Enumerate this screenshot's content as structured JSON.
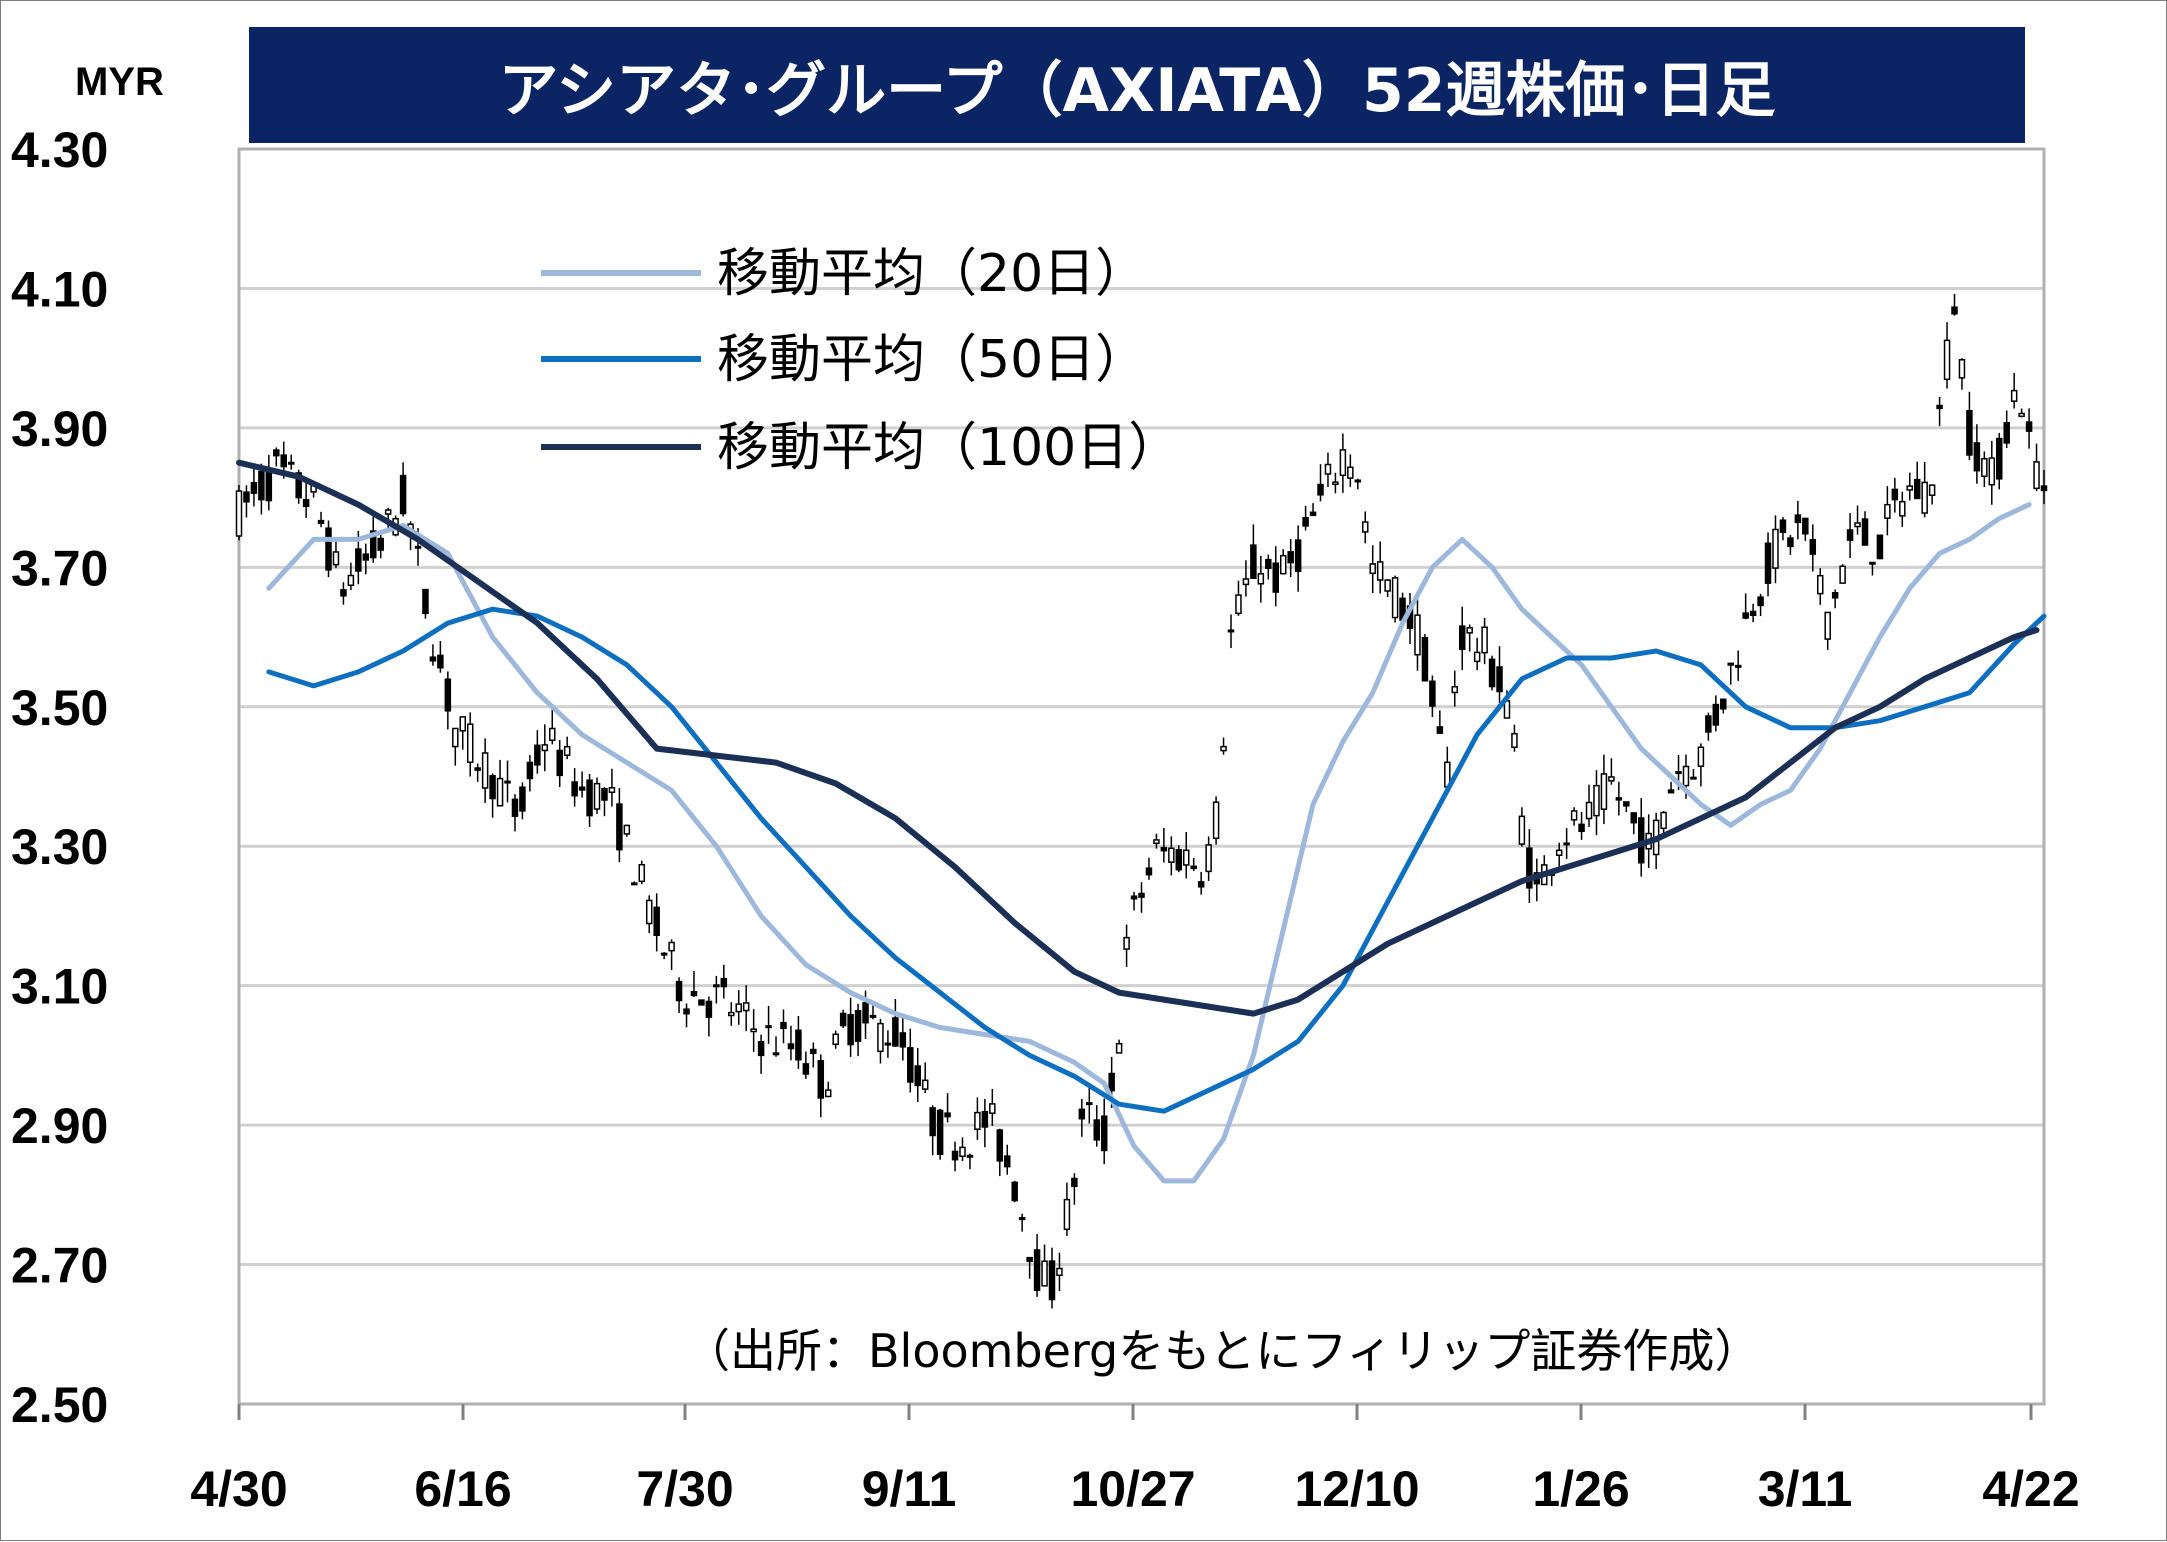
{
  "chart_data": {
    "type": "candlestick",
    "title": "アシアタ･グループ（AXIATA）52週株価･日足",
    "unit": "MYR",
    "ylim": [
      2.5,
      4.3
    ],
    "yticks": [
      "4.30",
      "4.10",
      "3.90",
      "3.70",
      "3.50",
      "3.30",
      "3.10",
      "2.90",
      "2.70",
      "2.50"
    ],
    "ytick_values": [
      4.3,
      4.1,
      3.9,
      3.7,
      3.5,
      3.3,
      3.1,
      2.9,
      2.7,
      2.5
    ],
    "xticks": [
      "4/30",
      "6/16",
      "7/30",
      "9/11",
      "10/27",
      "12/10",
      "1/26",
      "3/11",
      "4/22"
    ],
    "grid": true,
    "legend_position": "top-left",
    "source": "（出所：Bloombergをもとにフィリップ証券作成）",
    "colors": {
      "title_bg": "#0b2463",
      "ma20": "#9db8da",
      "ma50": "#0e6fc0",
      "ma100": "#1c2f55",
      "candle": "#000000",
      "grid": "#d0d0d0"
    },
    "series": [
      {
        "name": "移動平均（20日）",
        "legend_label": "移動平均（20日）",
        "color": "#9db8da",
        "points": [
          [
            4,
            3.67
          ],
          [
            10,
            3.74
          ],
          [
            16,
            3.74
          ],
          [
            22,
            3.76
          ],
          [
            28,
            3.72
          ],
          [
            34,
            3.6
          ],
          [
            40,
            3.52
          ],
          [
            46,
            3.46
          ],
          [
            52,
            3.42
          ],
          [
            58,
            3.38
          ],
          [
            64,
            3.3
          ],
          [
            70,
            3.2
          ],
          [
            76,
            3.13
          ],
          [
            82,
            3.09
          ],
          [
            88,
            3.06
          ],
          [
            94,
            3.04
          ],
          [
            100,
            3.03
          ],
          [
            106,
            3.02
          ],
          [
            112,
            2.99
          ],
          [
            116,
            2.96
          ],
          [
            120,
            2.87
          ],
          [
            124,
            2.82
          ],
          [
            128,
            2.82
          ],
          [
            132,
            2.88
          ],
          [
            136,
            3.0
          ],
          [
            140,
            3.18
          ],
          [
            144,
            3.36
          ],
          [
            148,
            3.45
          ],
          [
            152,
            3.52
          ],
          [
            156,
            3.62
          ],
          [
            160,
            3.7
          ],
          [
            164,
            3.74
          ],
          [
            168,
            3.7
          ],
          [
            172,
            3.64
          ],
          [
            176,
            3.6
          ],
          [
            180,
            3.56
          ],
          [
            184,
            3.5
          ],
          [
            188,
            3.44
          ],
          [
            192,
            3.4
          ],
          [
            196,
            3.36
          ],
          [
            200,
            3.33
          ],
          [
            204,
            3.36
          ],
          [
            208,
            3.38
          ],
          [
            212,
            3.44
          ],
          [
            216,
            3.52
          ],
          [
            220,
            3.6
          ],
          [
            224,
            3.67
          ],
          [
            228,
            3.72
          ],
          [
            232,
            3.74
          ],
          [
            236,
            3.77
          ],
          [
            240,
            3.79
          ]
        ]
      },
      {
        "name": "移動平均（50日）",
        "legend_label": "移動平均（50日）",
        "color": "#0e6fc0",
        "points": [
          [
            4,
            3.55
          ],
          [
            10,
            3.53
          ],
          [
            16,
            3.55
          ],
          [
            22,
            3.58
          ],
          [
            28,
            3.62
          ],
          [
            34,
            3.64
          ],
          [
            40,
            3.63
          ],
          [
            46,
            3.6
          ],
          [
            52,
            3.56
          ],
          [
            58,
            3.5
          ],
          [
            64,
            3.42
          ],
          [
            70,
            3.34
          ],
          [
            76,
            3.27
          ],
          [
            82,
            3.2
          ],
          [
            88,
            3.14
          ],
          [
            94,
            3.09
          ],
          [
            100,
            3.04
          ],
          [
            106,
            3.0
          ],
          [
            112,
            2.97
          ],
          [
            118,
            2.93
          ],
          [
            124,
            2.92
          ],
          [
            130,
            2.95
          ],
          [
            136,
            2.98
          ],
          [
            142,
            3.02
          ],
          [
            148,
            3.1
          ],
          [
            154,
            3.22
          ],
          [
            160,
            3.34
          ],
          [
            166,
            3.46
          ],
          [
            172,
            3.54
          ],
          [
            178,
            3.57
          ],
          [
            184,
            3.57
          ],
          [
            190,
            3.58
          ],
          [
            196,
            3.56
          ],
          [
            202,
            3.5
          ],
          [
            208,
            3.47
          ],
          [
            214,
            3.47
          ],
          [
            220,
            3.48
          ],
          [
            226,
            3.5
          ],
          [
            232,
            3.52
          ],
          [
            238,
            3.59
          ],
          [
            242,
            3.63
          ]
        ]
      },
      {
        "name": "移動平均（100日）",
        "legend_label": "移動平均（100日）",
        "color": "#1c2f55",
        "points": [
          [
            0,
            3.85
          ],
          [
            8,
            3.83
          ],
          [
            16,
            3.79
          ],
          [
            24,
            3.74
          ],
          [
            32,
            3.68
          ],
          [
            40,
            3.62
          ],
          [
            48,
            3.54
          ],
          [
            56,
            3.44
          ],
          [
            64,
            3.43
          ],
          [
            72,
            3.42
          ],
          [
            80,
            3.39
          ],
          [
            88,
            3.34
          ],
          [
            96,
            3.27
          ],
          [
            104,
            3.19
          ],
          [
            112,
            3.12
          ],
          [
            118,
            3.09
          ],
          [
            124,
            3.08
          ],
          [
            130,
            3.07
          ],
          [
            136,
            3.06
          ],
          [
            142,
            3.08
          ],
          [
            148,
            3.12
          ],
          [
            154,
            3.16
          ],
          [
            160,
            3.19
          ],
          [
            166,
            3.22
          ],
          [
            172,
            3.25
          ],
          [
            178,
            3.27
          ],
          [
            184,
            3.29
          ],
          [
            190,
            3.31
          ],
          [
            196,
            3.34
          ],
          [
            202,
            3.37
          ],
          [
            208,
            3.42
          ],
          [
            214,
            3.47
          ],
          [
            220,
            3.5
          ],
          [
            226,
            3.54
          ],
          [
            232,
            3.57
          ],
          [
            238,
            3.6
          ],
          [
            241,
            3.61
          ]
        ]
      }
    ]
  }
}
